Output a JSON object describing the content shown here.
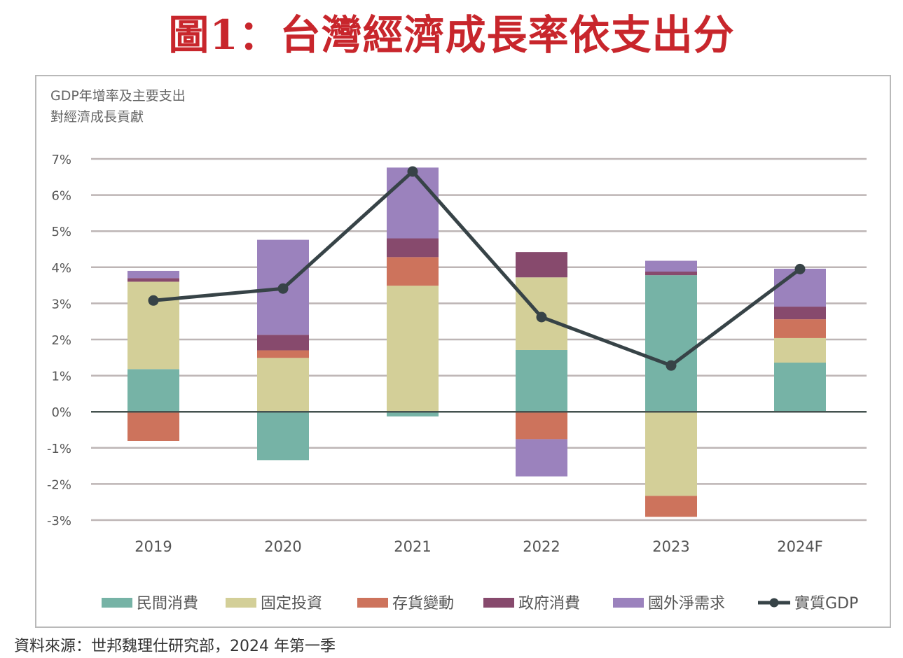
{
  "figure": {
    "title": "圖1：台灣經濟成長率依支出分",
    "subtitle_line1": "GDP年增率及主要支出",
    "subtitle_line2": "對經濟成長貢獻",
    "source": "資料來源：世邦魏理仕研究部，2024 年第一季"
  },
  "chart_data": {
    "type": "bar",
    "stacked": true,
    "title": "GDP年增率及主要支出對經濟成長貢獻",
    "xlabel": "",
    "ylabel": "",
    "ylim": [
      -3,
      7
    ],
    "yticks": [
      7,
      6,
      5,
      4,
      3,
      2,
      1,
      0,
      -1,
      -2,
      -3
    ],
    "ytick_labels": [
      "7%",
      "6%",
      "5%",
      "4%",
      "3%",
      "2%",
      "1%",
      "0%",
      "-1%",
      "-2%",
      "-3%"
    ],
    "grid": true,
    "legend_position": "bottom",
    "categories": [
      "2019",
      "2020",
      "2021",
      "2022",
      "2023",
      "2024F"
    ],
    "series": [
      {
        "name": "民間消費",
        "color": "#76b3a6",
        "values": [
          1.18,
          -1.34,
          -0.13,
          1.71,
          3.78,
          1.36
        ]
      },
      {
        "name": "固定投資",
        "color": "#d3cf98",
        "values": [
          2.42,
          1.49,
          3.49,
          2.01,
          -2.33,
          0.68
        ]
      },
      {
        "name": "存貨變動",
        "color": "#cd735c",
        "values": [
          -0.81,
          0.21,
          0.79,
          -0.76,
          -0.58,
          0.52
        ]
      },
      {
        "name": "政府消費",
        "color": "#874a6d",
        "values": [
          0.1,
          0.43,
          0.52,
          0.7,
          0.1,
          0.35
        ]
      },
      {
        "name": "國外淨需求",
        "color": "#9b82bd",
        "values": [
          0.2,
          2.63,
          1.96,
          -1.03,
          0.3,
          1.05
        ]
      }
    ],
    "line_series": {
      "name": "實質GDP",
      "color": "#374347",
      "values": [
        3.08,
        3.41,
        6.65,
        2.62,
        1.28,
        3.95
      ]
    }
  }
}
